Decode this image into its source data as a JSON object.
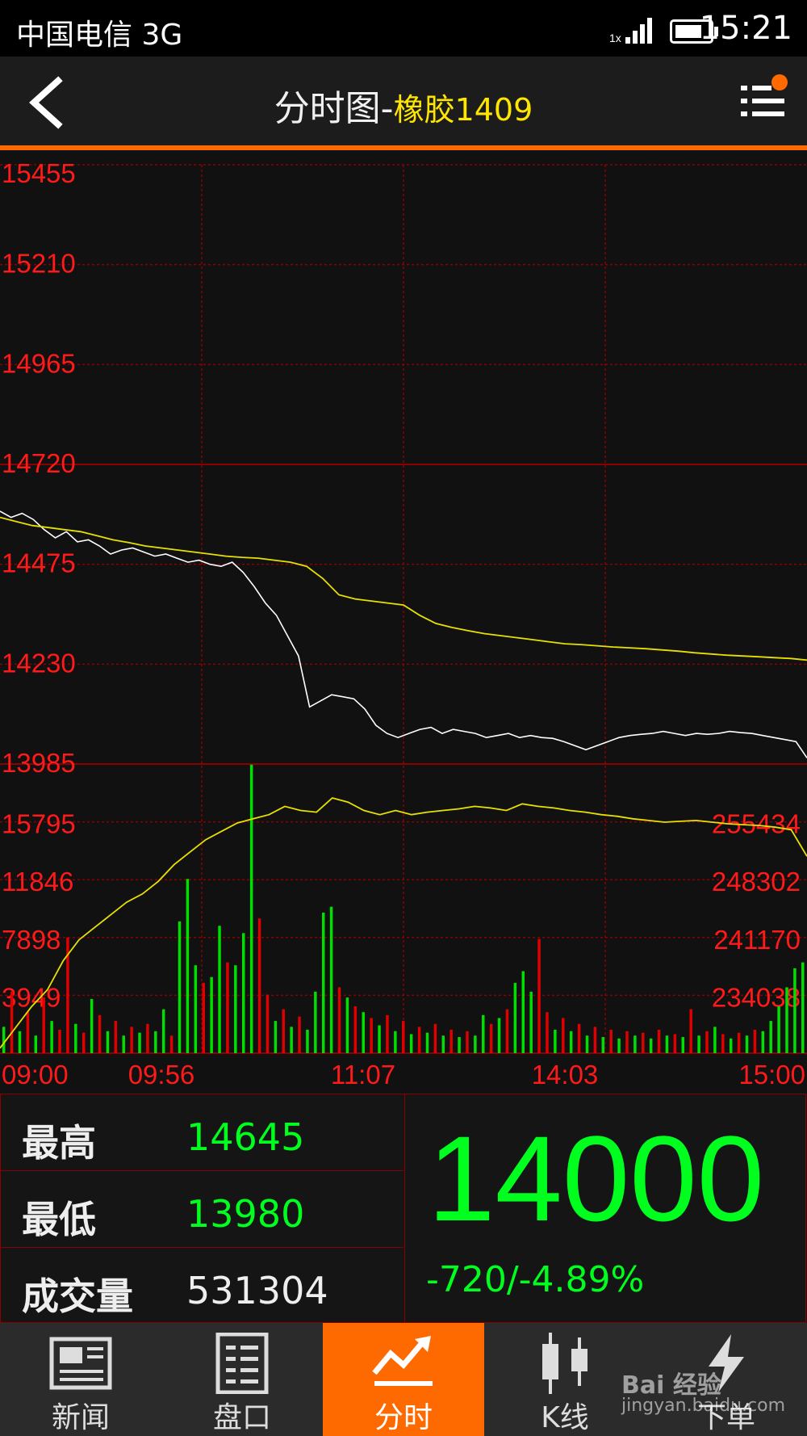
{
  "status_bar": {
    "carrier": "中国电信 3G",
    "time": "15:21",
    "signal_label": "1x"
  },
  "header": {
    "title": "分时图-",
    "instrument": "橡胶1409"
  },
  "chart_data": {
    "type": "line",
    "price_panel": {
      "y_ticks": [
        15455,
        15210,
        14965,
        14720,
        14475,
        14230,
        13985
      ],
      "ylim": [
        13985,
        15455
      ],
      "series": [
        {
          "color": "#ffffff",
          "values": [
            14605,
            14590,
            14600,
            14585,
            14560,
            14540,
            14555,
            14530,
            14535,
            14520,
            14500,
            14510,
            14515,
            14505,
            14495,
            14500,
            14490,
            14480,
            14485,
            14475,
            14470,
            14480,
            14455,
            14420,
            14380,
            14350,
            14300,
            14250,
            14125,
            14140,
            14155,
            14150,
            14145,
            14120,
            14080,
            14060,
            14050,
            14060,
            14070,
            14075,
            14060,
            14070,
            14065,
            14060,
            14050,
            14055,
            14060,
            14050,
            14055,
            14050,
            14048,
            14040,
            14030,
            14020,
            14030,
            14040,
            14050,
            14055,
            14058,
            14060,
            14065,
            14060,
            14055,
            14060,
            14058,
            14060,
            14065,
            14062,
            14060,
            14055,
            14050,
            14045,
            14040,
            14000
          ]
        },
        {
          "color": "#e8e000",
          "values": [
            14590,
            14580,
            14570,
            14565,
            14560,
            14555,
            14545,
            14535,
            14528,
            14520,
            14515,
            14510,
            14505,
            14500,
            14495,
            14492,
            14490,
            14485,
            14480,
            14470,
            14440,
            14400,
            14390,
            14385,
            14380,
            14375,
            14350,
            14330,
            14320,
            14312,
            14305,
            14300,
            14295,
            14290,
            14285,
            14280,
            14278,
            14275,
            14272,
            14270,
            14268,
            14265,
            14262,
            14258,
            14255,
            14252,
            14250,
            14248,
            14246,
            14244,
            14240
          ]
        }
      ]
    },
    "volume_panel": {
      "left_ticks": [
        15795,
        11846,
        7898,
        3949
      ],
      "right_ticks": [
        255434,
        248302,
        241170,
        234038
      ],
      "ylim": [
        0,
        19744
      ],
      "open_interest_line": {
        "color": "#e8e000",
        "values": [
          228500,
          231000,
          233500,
          235500,
          239000,
          241500,
          243000,
          244500,
          246000,
          247000,
          248500,
          250500,
          252000,
          253500,
          254500,
          255500,
          256000,
          256500,
          257500,
          257000,
          256800,
          258500,
          258000,
          257000,
          256500,
          257000,
          256500,
          256800,
          257000,
          257200,
          257500,
          257300,
          257000,
          257800,
          257500,
          257300,
          257000,
          256800,
          256500,
          256300,
          256000,
          255800,
          255600,
          255700,
          255800,
          255600,
          255400,
          255300,
          255200,
          255000,
          254700,
          251500
        ]
      },
      "volume": [
        {
          "v": 1800,
          "c": "#00e000"
        },
        {
          "v": 4200,
          "c": "#e00000"
        },
        {
          "v": 1500,
          "c": "#00e000"
        },
        {
          "v": 2800,
          "c": "#e00000"
        },
        {
          "v": 1200,
          "c": "#00e000"
        },
        {
          "v": 3800,
          "c": "#e00000"
        },
        {
          "v": 2200,
          "c": "#00e000"
        },
        {
          "v": 1600,
          "c": "#e00000"
        },
        {
          "v": 7900,
          "c": "#e00000"
        },
        {
          "v": 2000,
          "c": "#00e000"
        },
        {
          "v": 1400,
          "c": "#e00000"
        },
        {
          "v": 3700,
          "c": "#00e000"
        },
        {
          "v": 2600,
          "c": "#e00000"
        },
        {
          "v": 1500,
          "c": "#00e000"
        },
        {
          "v": 2200,
          "c": "#e00000"
        },
        {
          "v": 1200,
          "c": "#00e000"
        },
        {
          "v": 1800,
          "c": "#e00000"
        },
        {
          "v": 1400,
          "c": "#00e000"
        },
        {
          "v": 2000,
          "c": "#e00000"
        },
        {
          "v": 1500,
          "c": "#00e000"
        },
        {
          "v": 3000,
          "c": "#00e000"
        },
        {
          "v": 1200,
          "c": "#e00000"
        },
        {
          "v": 9000,
          "c": "#00e000"
        },
        {
          "v": 11900,
          "c": "#00e000"
        },
        {
          "v": 6000,
          "c": "#00e000"
        },
        {
          "v": 4800,
          "c": "#e00000"
        },
        {
          "v": 5200,
          "c": "#00e000"
        },
        {
          "v": 8700,
          "c": "#00e000"
        },
        {
          "v": 6200,
          "c": "#e00000"
        },
        {
          "v": 6000,
          "c": "#00e000"
        },
        {
          "v": 8200,
          "c": "#00e000"
        },
        {
          "v": 19700,
          "c": "#00e000"
        },
        {
          "v": 9200,
          "c": "#e00000"
        },
        {
          "v": 4000,
          "c": "#e00000"
        },
        {
          "v": 2200,
          "c": "#00e000"
        },
        {
          "v": 3000,
          "c": "#e00000"
        },
        {
          "v": 1800,
          "c": "#00e000"
        },
        {
          "v": 2500,
          "c": "#e00000"
        },
        {
          "v": 1600,
          "c": "#00e000"
        },
        {
          "v": 4200,
          "c": "#00e000"
        },
        {
          "v": 9600,
          "c": "#00e000"
        },
        {
          "v": 10000,
          "c": "#00e000"
        },
        {
          "v": 4500,
          "c": "#e00000"
        },
        {
          "v": 3800,
          "c": "#00e000"
        },
        {
          "v": 3200,
          "c": "#e00000"
        },
        {
          "v": 2800,
          "c": "#00e000"
        },
        {
          "v": 2400,
          "c": "#e00000"
        },
        {
          "v": 1900,
          "c": "#00e000"
        },
        {
          "v": 2600,
          "c": "#e00000"
        },
        {
          "v": 1500,
          "c": "#00e000"
        },
        {
          "v": 2200,
          "c": "#e00000"
        },
        {
          "v": 1300,
          "c": "#00e000"
        },
        {
          "v": 1800,
          "c": "#e00000"
        },
        {
          "v": 1400,
          "c": "#00e000"
        },
        {
          "v": 2000,
          "c": "#e00000"
        },
        {
          "v": 1200,
          "c": "#00e000"
        },
        {
          "v": 1600,
          "c": "#e00000"
        },
        {
          "v": 1100,
          "c": "#00e000"
        },
        {
          "v": 1500,
          "c": "#e00000"
        },
        {
          "v": 1200,
          "c": "#00e000"
        },
        {
          "v": 2600,
          "c": "#00e000"
        },
        {
          "v": 2000,
          "c": "#e00000"
        },
        {
          "v": 2400,
          "c": "#00e000"
        },
        {
          "v": 3000,
          "c": "#e00000"
        },
        {
          "v": 4800,
          "c": "#00e000"
        },
        {
          "v": 5600,
          "c": "#00e000"
        },
        {
          "v": 4200,
          "c": "#00e000"
        },
        {
          "v": 7800,
          "c": "#e00000"
        },
        {
          "v": 2800,
          "c": "#e00000"
        },
        {
          "v": 1600,
          "c": "#00e000"
        },
        {
          "v": 2400,
          "c": "#e00000"
        },
        {
          "v": 1500,
          "c": "#00e000"
        },
        {
          "v": 2000,
          "c": "#e00000"
        },
        {
          "v": 1200,
          "c": "#00e000"
        },
        {
          "v": 1800,
          "c": "#e00000"
        },
        {
          "v": 1100,
          "c": "#00e000"
        },
        {
          "v": 1600,
          "c": "#e00000"
        },
        {
          "v": 1000,
          "c": "#00e000"
        },
        {
          "v": 1500,
          "c": "#e00000"
        },
        {
          "v": 1200,
          "c": "#00e000"
        },
        {
          "v": 1400,
          "c": "#e00000"
        },
        {
          "v": 1000,
          "c": "#00e000"
        },
        {
          "v": 1600,
          "c": "#e00000"
        },
        {
          "v": 1200,
          "c": "#00e000"
        },
        {
          "v": 1300,
          "c": "#e00000"
        },
        {
          "v": 1100,
          "c": "#00e000"
        },
        {
          "v": 3000,
          "c": "#e00000"
        },
        {
          "v": 1200,
          "c": "#00e000"
        },
        {
          "v": 1500,
          "c": "#e00000"
        },
        {
          "v": 1800,
          "c": "#00e000"
        },
        {
          "v": 1300,
          "c": "#e00000"
        },
        {
          "v": 1000,
          "c": "#00e000"
        },
        {
          "v": 1400,
          "c": "#e00000"
        },
        {
          "v": 1200,
          "c": "#00e000"
        },
        {
          "v": 1600,
          "c": "#e00000"
        },
        {
          "v": 1500,
          "c": "#00e000"
        },
        {
          "v": 2200,
          "c": "#00e000"
        },
        {
          "v": 3200,
          "c": "#00e000"
        },
        {
          "v": 4500,
          "c": "#00e000"
        },
        {
          "v": 5800,
          "c": "#00e000"
        },
        {
          "v": 6200,
          "c": "#00e000"
        }
      ]
    },
    "x_ticks": [
      "09:00",
      "09:56",
      "11:07",
      "14:03",
      "15:00"
    ]
  },
  "quote": {
    "high_label": "最高",
    "high_value": "14645",
    "low_label": "最低",
    "low_value": "13980",
    "volume_label": "成交量",
    "volume_value": "531304",
    "last_price": "14000",
    "change": "-720/-4.89%"
  },
  "tabs": [
    {
      "label": "新闻",
      "icon": "newspaper-icon"
    },
    {
      "label": "盘口",
      "icon": "list-document-icon"
    },
    {
      "label": "分时",
      "icon": "trend-line-icon"
    },
    {
      "label": "K线",
      "icon": "candlestick-icon"
    },
    {
      "label": "下单",
      "icon": "lightning-icon"
    }
  ],
  "watermark": {
    "brand": "Bai 经验",
    "url": "jingyan.baidu.com"
  },
  "colors": {
    "accent": "#ff6a00",
    "down": "#00ff1e",
    "up": "#e00000",
    "grid": "#8b0000",
    "axis_label": "#ff1a1a"
  }
}
